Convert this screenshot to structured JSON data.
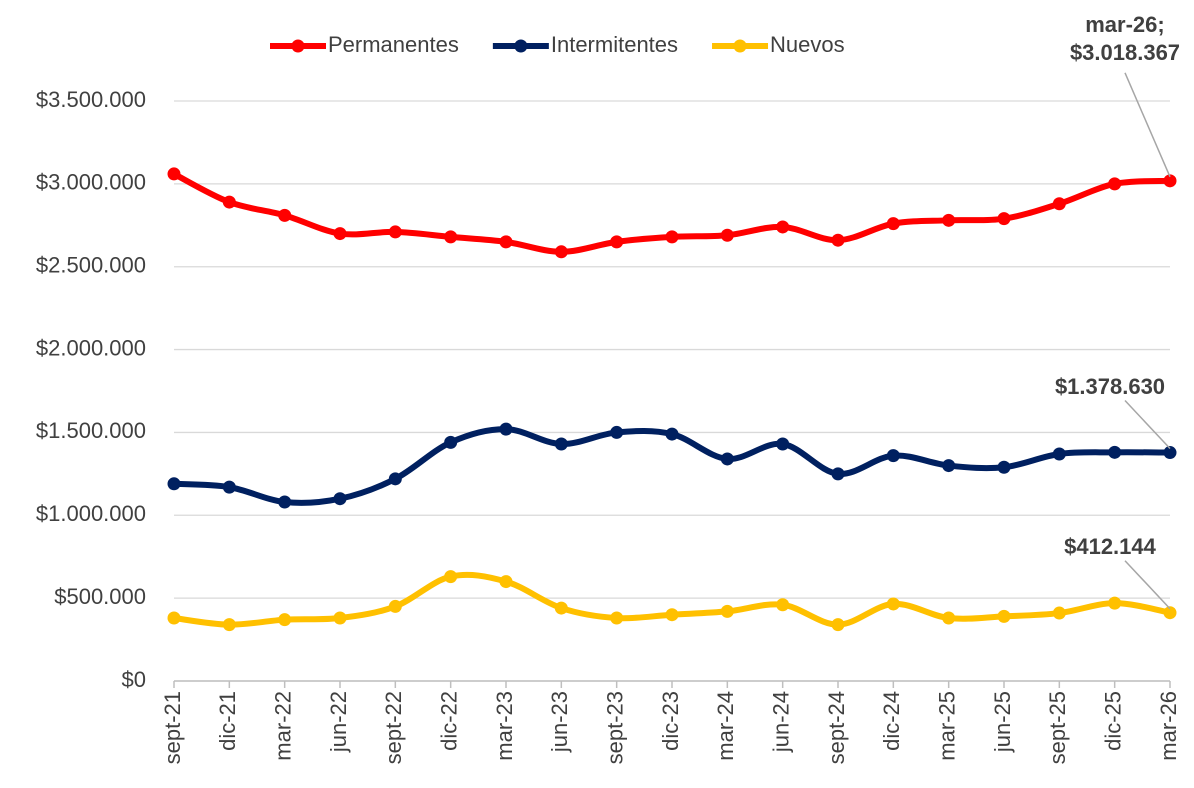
{
  "chart_data": {
    "type": "line",
    "categories": [
      "sept-21",
      "dic-21",
      "mar-22",
      "jun-22",
      "sept-22",
      "dic-22",
      "mar-23",
      "jun-23",
      "sept-23",
      "dic-23",
      "mar-24",
      "jun-24",
      "sept-24",
      "dic-24",
      "mar-25",
      "jun-25",
      "sept-25",
      "dic-25",
      "mar-26"
    ],
    "series": [
      {
        "name": "Permanentes",
        "color": "#ff0000",
        "values": [
          3060000,
          2890000,
          2810000,
          2700000,
          2710000,
          2680000,
          2650000,
          2590000,
          2650000,
          2680000,
          2690000,
          2740000,
          2660000,
          2760000,
          2780000,
          2790000,
          2880000,
          3000000,
          3018367
        ],
        "value_labels": [
          null,
          null,
          null,
          null,
          null,
          null,
          null,
          null,
          null,
          null,
          null,
          null,
          null,
          null,
          null,
          null,
          null,
          null,
          "mar-26; $3.018.367"
        ]
      },
      {
        "name": "Intermitentes",
        "color": "#002060",
        "values": [
          1190000,
          1170000,
          1080000,
          1100000,
          1220000,
          1440000,
          1520000,
          1430000,
          1500000,
          1490000,
          1340000,
          1430000,
          1250000,
          1360000,
          1300000,
          1290000,
          1370000,
          1380000,
          1378630
        ],
        "value_labels": [
          null,
          null,
          null,
          null,
          null,
          null,
          null,
          null,
          null,
          null,
          null,
          null,
          null,
          null,
          null,
          null,
          null,
          null,
          "$1.378.630"
        ]
      },
      {
        "name": "Nuevos",
        "color": "#ffc000",
        "values": [
          380000,
          340000,
          370000,
          380000,
          450000,
          630000,
          600000,
          440000,
          380000,
          400000,
          420000,
          460000,
          340000,
          465000,
          380000,
          390000,
          410000,
          470000,
          412144
        ],
        "value_labels": [
          null,
          null,
          null,
          null,
          null,
          null,
          null,
          null,
          null,
          null,
          null,
          null,
          null,
          null,
          null,
          null,
          null,
          null,
          "$412.144"
        ]
      }
    ],
    "ylim": [
      0,
      3500000
    ],
    "yticks": [
      {
        "value": 0,
        "label": "$0"
      },
      {
        "value": 500000,
        "label": "$500.000"
      },
      {
        "value": 1000000,
        "label": "$1.000.000"
      },
      {
        "value": 1500000,
        "label": "$1.500.000"
      },
      {
        "value": 2000000,
        "label": "$2.000.000"
      },
      {
        "value": 2500000,
        "label": "$2.500.000"
      },
      {
        "value": 3000000,
        "label": "$3.000.000"
      },
      {
        "value": 3500000,
        "label": "$3.500.000"
      }
    ],
    "grid": true,
    "legend": "top"
  }
}
